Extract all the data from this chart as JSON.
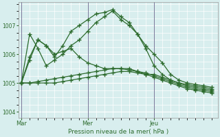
{
  "background_color": "#d8eeee",
  "grid_color": "#ffffff",
  "line_color": "#2d6b2d",
  "xlabel": "Pression niveau de la mer( hPa )",
  "ylim": [
    1003.8,
    1007.8
  ],
  "yticks": [
    1004,
    1005,
    1006,
    1007
  ],
  "day_labels": [
    "Mar",
    "Mer",
    "Jeu"
  ],
  "day_positions": [
    0,
    24,
    48
  ],
  "vline_color": "#555577",
  "series": [
    {
      "x": [
        0,
        3,
        6,
        9,
        12,
        15,
        18,
        21,
        24,
        27,
        30,
        33,
        36,
        39,
        42,
        45,
        48,
        51,
        54,
        57,
        60,
        63,
        66,
        69
      ],
      "y": [
        1005.0,
        1005.9,
        1006.5,
        1006.3,
        1006.0,
        1006.1,
        1006.2,
        1005.9,
        1005.7,
        1005.6,
        1005.5,
        1005.5,
        1005.5,
        1005.5,
        1005.4,
        1005.3,
        1005.3,
        1005.2,
        1005.1,
        1005.0,
        1004.9,
        1004.85,
        1004.8,
        1004.75
      ]
    },
    {
      "x": [
        0,
        3,
        6,
        9,
        12,
        15,
        18,
        21,
        24,
        27,
        30,
        33,
        36,
        39,
        42,
        45,
        48,
        51,
        54,
        57,
        60,
        63,
        66,
        69
      ],
      "y": [
        1005.0,
        1006.7,
        1006.2,
        1005.6,
        1005.8,
        1006.0,
        1006.3,
        1006.5,
        1006.8,
        1007.1,
        1007.3,
        1007.5,
        1007.2,
        1007.0,
        1006.7,
        1006.3,
        1006.0,
        1005.7,
        1005.3,
        1005.1,
        1005.0,
        1004.95,
        1004.9,
        1004.85
      ]
    },
    {
      "x": [
        0,
        3,
        6,
        9,
        12,
        15,
        18,
        21,
        24,
        27,
        30,
        33,
        36,
        39,
        42,
        45,
        48,
        51,
        54,
        57,
        60,
        63,
        66,
        69
      ],
      "y": [
        1005.0,
        1005.8,
        1006.5,
        1006.3,
        1005.9,
        1006.3,
        1006.8,
        1007.0,
        1007.2,
        1007.4,
        1007.45,
        1007.55,
        1007.3,
        1007.1,
        1006.7,
        1006.2,
        1005.6,
        1005.3,
        1005.1,
        1005.0,
        1004.95,
        1004.9,
        1004.85,
        1004.8
      ]
    },
    {
      "x": [
        0,
        3,
        6,
        9,
        12,
        15,
        18,
        21,
        24,
        27,
        30,
        33,
        36,
        39,
        42,
        45,
        48,
        51,
        54,
        57,
        60,
        63,
        66,
        69
      ],
      "y": [
        1005.0,
        1005.0,
        1005.0,
        1005.0,
        1005.0,
        1005.05,
        1005.1,
        1005.15,
        1005.2,
        1005.25,
        1005.3,
        1005.35,
        1005.4,
        1005.4,
        1005.35,
        1005.3,
        1005.2,
        1005.1,
        1005.0,
        1004.9,
        1004.8,
        1004.75,
        1004.7,
        1004.65
      ]
    },
    {
      "x": [
        0,
        3,
        6,
        9,
        12,
        15,
        18,
        21,
        24,
        27,
        30,
        33,
        36,
        39,
        42,
        45,
        48,
        51,
        54,
        57,
        60,
        63,
        66,
        69
      ],
      "y": [
        1005.0,
        1005.0,
        1005.05,
        1005.1,
        1005.15,
        1005.2,
        1005.25,
        1005.3,
        1005.35,
        1005.4,
        1005.45,
        1005.5,
        1005.5,
        1005.45,
        1005.4,
        1005.35,
        1005.25,
        1005.15,
        1005.05,
        1004.95,
        1004.85,
        1004.8,
        1004.75,
        1004.7
      ]
    }
  ]
}
